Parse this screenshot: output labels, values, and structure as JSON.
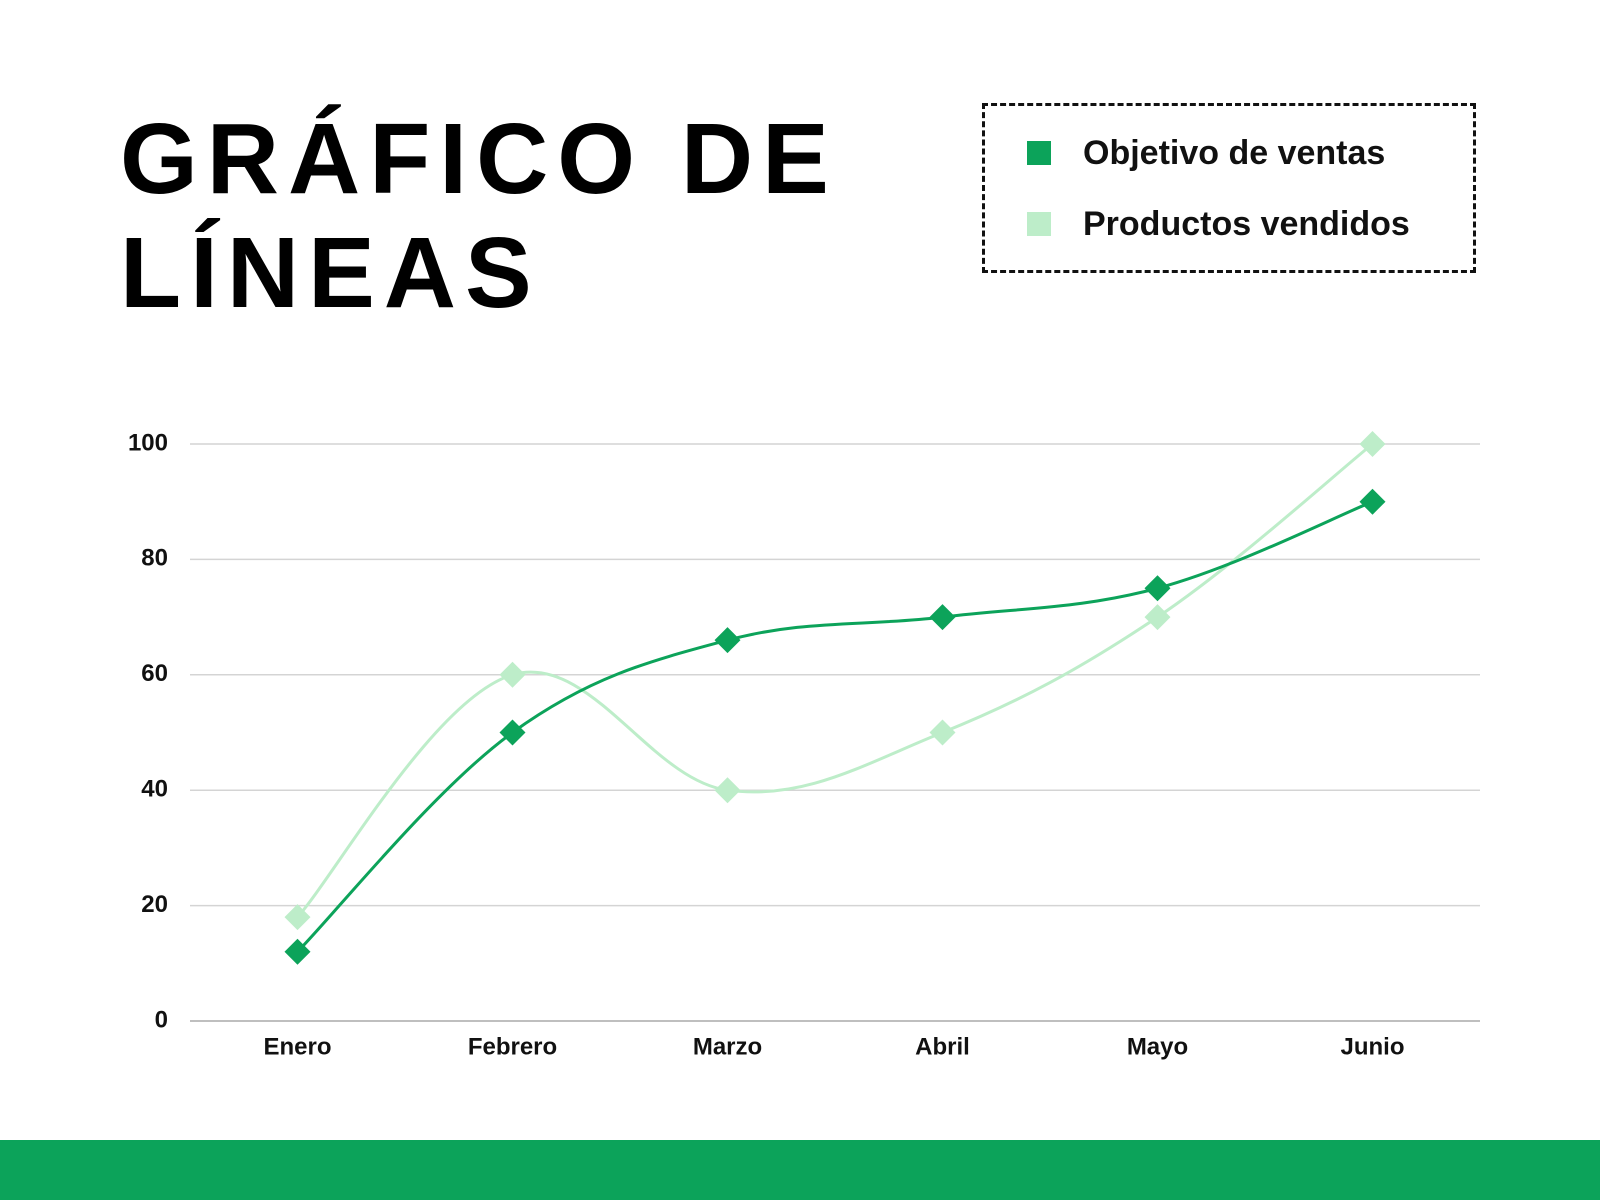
{
  "chart_data": {
    "type": "line",
    "title": "GRÁFICO DE LÍNEAS",
    "categories": [
      "Enero",
      "Febrero",
      "Marzo",
      "Abril",
      "Mayo",
      "Junio"
    ],
    "series": [
      {
        "name": "Objetivo de ventas",
        "color": "#0ca35a",
        "values": [
          12,
          50,
          66,
          70,
          75,
          90
        ]
      },
      {
        "name": "Productos vendidos",
        "color": "#bdedc9",
        "values": [
          18,
          60,
          40,
          50,
          70,
          100
        ]
      }
    ],
    "ylim": [
      0,
      100
    ],
    "yticks": [
      0,
      20,
      40,
      60,
      80,
      100
    ],
    "grid": true,
    "legend": "top-right"
  }
}
